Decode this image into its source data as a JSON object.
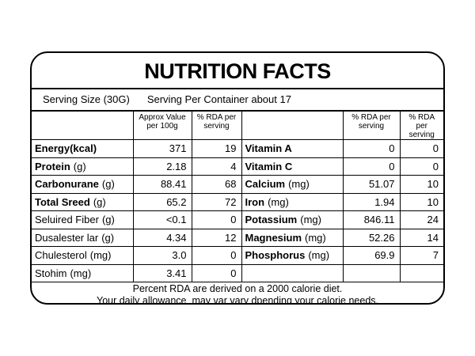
{
  "header": {
    "title": "NUTRITION FACTS",
    "serving_size": "Serving Size (30G)",
    "servings_per_container": "Serving Per Container about 17"
  },
  "table": {
    "columns": [
      "Approx Value per 100g",
      "% RDA per serving",
      "% RDA per serving",
      "% RDA per serving"
    ],
    "left": [
      {
        "label": "Energy(kcal)",
        "bold": true,
        "value": "371",
        "rda": "19"
      },
      {
        "label": "Protein",
        "unit": "(g)",
        "bold": true,
        "value": "2.18",
        "rda": "4"
      },
      {
        "label": "Carbonurane",
        "unit": "(g)",
        "bold": true,
        "value": "88.41",
        "rda": "68"
      },
      {
        "label": "Total Sreed",
        "unit": "(g)",
        "bold": true,
        "value": "65.2",
        "rda": "72"
      },
      {
        "label": "Seluired Fiber",
        "unit": "(g)",
        "bold": false,
        "value": "<0.1",
        "rda": "0"
      },
      {
        "label": "Dusalester lar",
        "unit": "(g)",
        "bold": false,
        "value": "4.34",
        "rda": "12"
      },
      {
        "label": "Chulesterol",
        "unit": "(mg)",
        "bold": false,
        "value": "3.0",
        "rda": "0"
      },
      {
        "label": "Stohim",
        "unit": "(mg)",
        "bold": false,
        "value": "3.41",
        "rda": "0"
      }
    ],
    "right": [
      {
        "label": "Vitamin A",
        "bold": true,
        "value": "0",
        "rda": "0"
      },
      {
        "label": "Vitamin C",
        "bold": true,
        "value": "0",
        "rda": "0"
      },
      {
        "label": "Calcium",
        "unit": "(mg)",
        "bold": true,
        "value": "51.07",
        "rda": "10"
      },
      {
        "label": "Iron",
        "unit": "(mg)",
        "bold": true,
        "value": "1.94",
        "rda": "10"
      },
      {
        "label": "Potassium",
        "unit": "(mg)",
        "bold": true,
        "value": "846.11",
        "rda": "24"
      },
      {
        "label": "Magnesium",
        "unit": "(mg)",
        "bold": true,
        "value": "52.26",
        "rda": "14"
      },
      {
        "label": "Phosphorus",
        "unit": "(mg)",
        "bold": true,
        "value": "69.9",
        "rda": "7"
      }
    ]
  },
  "footer": {
    "lines": [
      "Percent RDA are derived on a 2000 calorie diet.",
      "Your daily allowance  may var vary dpending your calorie needs."
    ]
  }
}
